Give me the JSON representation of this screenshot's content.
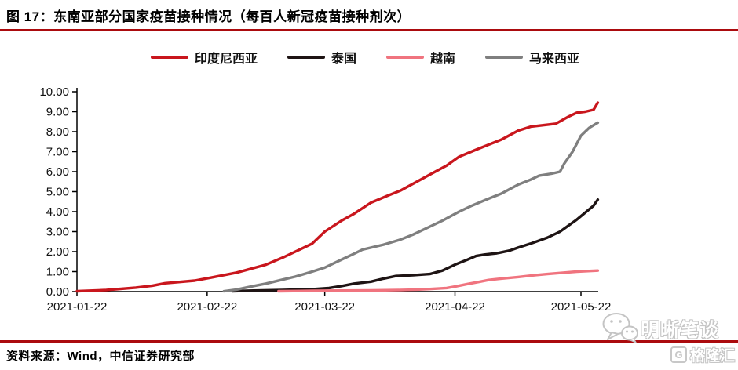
{
  "header": {
    "title": "图 17：东南亚部分国家疫苗接种情况（每百人新冠疫苗接种剂次）"
  },
  "footer": {
    "source": "资料来源：Wind，中信证券研究部"
  },
  "watermarks": {
    "wechat_icon": "wechat-bubble-icon",
    "blog_name": "明晰笔谈",
    "logo_letter": "G",
    "platform_name": "格隆汇"
  },
  "colors": {
    "accent_red": "#AB0B0E",
    "axis_black": "#000000",
    "series_indonesia": "#C9161D",
    "series_thailand": "#1E1414",
    "series_vietnam": "#F0747F",
    "series_malaysia": "#7F7F7F"
  },
  "chart_data": {
    "type": "line",
    "title": "东南亚部分国家疫苗接种情况（每百人新冠疫苗接种剂次）",
    "legend_position": "top",
    "grid": false,
    "y_axis": {
      "min": 0,
      "max": 10,
      "step": 1,
      "tick_labels": [
        "0.00",
        "1.00",
        "2.00",
        "3.00",
        "4.00",
        "5.00",
        "6.00",
        "7.00",
        "8.00",
        "9.00",
        "10.00"
      ]
    },
    "x_axis": {
      "start_date": "2021-01-22",
      "end_date": "2021-05-26",
      "tick_labels": [
        "2021-01-22",
        "2021-02-22",
        "2021-03-22",
        "2021-04-22",
        "2021-05-22"
      ]
    },
    "series": [
      {
        "id": "indonesia",
        "name": "印度尼西亚",
        "color": "#C9161D",
        "points": [
          [
            "2021-01-22",
            0.02
          ],
          [
            "2021-01-29",
            0.08
          ],
          [
            "2021-02-05",
            0.2
          ],
          [
            "2021-02-09",
            0.3
          ],
          [
            "2021-02-12",
            0.42
          ],
          [
            "2021-02-19",
            0.55
          ],
          [
            "2021-02-23",
            0.7
          ],
          [
            "2021-03-01",
            0.95
          ],
          [
            "2021-03-08",
            1.35
          ],
          [
            "2021-03-12",
            1.7
          ],
          [
            "2021-03-15",
            2.0
          ],
          [
            "2021-03-19",
            2.4
          ],
          [
            "2021-03-22",
            3.0
          ],
          [
            "2021-03-26",
            3.55
          ],
          [
            "2021-03-29",
            3.9
          ],
          [
            "2021-04-02",
            4.45
          ],
          [
            "2021-04-06",
            4.8
          ],
          [
            "2021-04-09",
            5.05
          ],
          [
            "2021-04-16",
            5.85
          ],
          [
            "2021-04-20",
            6.3
          ],
          [
            "2021-04-23",
            6.75
          ],
          [
            "2021-04-27",
            7.1
          ],
          [
            "2021-04-30",
            7.35
          ],
          [
            "2021-05-03",
            7.6
          ],
          [
            "2021-05-07",
            8.05
          ],
          [
            "2021-05-10",
            8.25
          ],
          [
            "2021-05-12",
            8.3
          ],
          [
            "2021-05-16",
            8.4
          ],
          [
            "2021-05-19",
            8.75
          ],
          [
            "2021-05-21",
            8.95
          ],
          [
            "2021-05-23",
            9.0
          ],
          [
            "2021-05-25",
            9.1
          ],
          [
            "2021-05-26",
            9.45
          ]
        ]
      },
      {
        "id": "thailand",
        "name": "泰国",
        "color": "#1E1414",
        "points": [
          [
            "2021-02-28",
            0.02
          ],
          [
            "2021-03-05",
            0.05
          ],
          [
            "2021-03-12",
            0.08
          ],
          [
            "2021-03-19",
            0.12
          ],
          [
            "2021-03-23",
            0.18
          ],
          [
            "2021-03-26",
            0.28
          ],
          [
            "2021-03-29",
            0.4
          ],
          [
            "2021-04-02",
            0.5
          ],
          [
            "2021-04-05",
            0.65
          ],
          [
            "2021-04-08",
            0.78
          ],
          [
            "2021-04-12",
            0.82
          ],
          [
            "2021-04-16",
            0.88
          ],
          [
            "2021-04-19",
            1.05
          ],
          [
            "2021-04-22",
            1.35
          ],
          [
            "2021-04-25",
            1.6
          ],
          [
            "2021-04-27",
            1.78
          ],
          [
            "2021-04-29",
            1.85
          ],
          [
            "2021-05-02",
            1.92
          ],
          [
            "2021-05-05",
            2.05
          ],
          [
            "2021-05-07",
            2.2
          ],
          [
            "2021-05-10",
            2.4
          ],
          [
            "2021-05-14",
            2.7
          ],
          [
            "2021-05-17",
            3.0
          ],
          [
            "2021-05-19",
            3.3
          ],
          [
            "2021-05-21",
            3.6
          ],
          [
            "2021-05-23",
            3.95
          ],
          [
            "2021-05-25",
            4.3
          ],
          [
            "2021-05-26",
            4.6
          ]
        ]
      },
      {
        "id": "vietnam",
        "name": "越南",
        "color": "#F0747F",
        "points": [
          [
            "2021-03-11",
            0.02
          ],
          [
            "2021-03-19",
            0.04
          ],
          [
            "2021-03-26",
            0.05
          ],
          [
            "2021-04-02",
            0.06
          ],
          [
            "2021-04-09",
            0.08
          ],
          [
            "2021-04-13",
            0.1
          ],
          [
            "2021-04-16",
            0.13
          ],
          [
            "2021-04-20",
            0.18
          ],
          [
            "2021-04-22",
            0.25
          ],
          [
            "2021-04-25",
            0.38
          ],
          [
            "2021-04-28",
            0.5
          ],
          [
            "2021-04-30",
            0.58
          ],
          [
            "2021-05-03",
            0.65
          ],
          [
            "2021-05-07",
            0.73
          ],
          [
            "2021-05-11",
            0.82
          ],
          [
            "2021-05-14",
            0.88
          ],
          [
            "2021-05-18",
            0.95
          ],
          [
            "2021-05-21",
            1.0
          ],
          [
            "2021-05-26",
            1.05
          ]
        ]
      },
      {
        "id": "malaysia",
        "name": "马来西亚",
        "color": "#7F7F7F",
        "points": [
          [
            "2021-02-26",
            0.02
          ],
          [
            "2021-03-01",
            0.1
          ],
          [
            "2021-03-05",
            0.28
          ],
          [
            "2021-03-08",
            0.4
          ],
          [
            "2021-03-12",
            0.6
          ],
          [
            "2021-03-15",
            0.75
          ],
          [
            "2021-03-19",
            1.0
          ],
          [
            "2021-03-22",
            1.2
          ],
          [
            "2021-03-26",
            1.6
          ],
          [
            "2021-03-29",
            1.9
          ],
          [
            "2021-03-31",
            2.1
          ],
          [
            "2021-04-02",
            2.2
          ],
          [
            "2021-04-05",
            2.35
          ],
          [
            "2021-04-09",
            2.6
          ],
          [
            "2021-04-12",
            2.85
          ],
          [
            "2021-04-16",
            3.25
          ],
          [
            "2021-04-19",
            3.55
          ],
          [
            "2021-04-23",
            4.0
          ],
          [
            "2021-04-26",
            4.3
          ],
          [
            "2021-04-30",
            4.65
          ],
          [
            "2021-05-03",
            4.9
          ],
          [
            "2021-05-07",
            5.35
          ],
          [
            "2021-05-10",
            5.6
          ],
          [
            "2021-05-12",
            5.8
          ],
          [
            "2021-05-15",
            5.9
          ],
          [
            "2021-05-17",
            6.0
          ],
          [
            "2021-05-18",
            6.4
          ],
          [
            "2021-05-20",
            7.0
          ],
          [
            "2021-05-22",
            7.8
          ],
          [
            "2021-05-24",
            8.2
          ],
          [
            "2021-05-26",
            8.45
          ]
        ]
      }
    ]
  }
}
